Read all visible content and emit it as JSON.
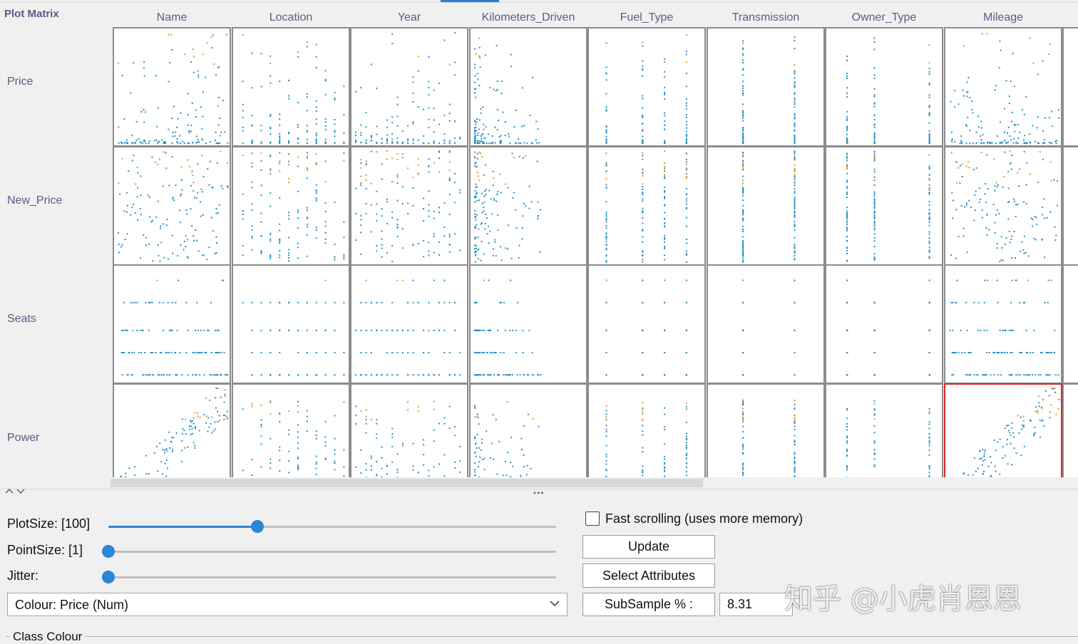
{
  "matrix": {
    "corner_label": "Plot Matrix",
    "columns": [
      "Name",
      "Location",
      "Year",
      "Kilometers_Driven",
      "Fuel_Type",
      "Transmission",
      "Owner_Type",
      "Mileage"
    ],
    "rows": [
      "Price",
      "New_Price",
      "Seats",
      "Power"
    ],
    "selected_cell": {
      "row": "Power",
      "column": "Mileage"
    }
  },
  "colors": {
    "point_primary": "#2a8fc4",
    "point_secondary": "#d9972a",
    "selection_border": "#d62a2a",
    "accent": "#2a86d6"
  },
  "controls": {
    "plot_size_label": "PlotSize: [100]",
    "plot_size_value": 100,
    "point_size_label": "PointSize: [1]",
    "point_size_value": 1,
    "jitter_label": "Jitter:",
    "jitter_value": 0,
    "colour_select": "Colour: Price  (Num)",
    "fast_scrolling_label": "Fast scrolling (uses more memory)",
    "fast_scrolling_checked": false,
    "update_button": "Update",
    "select_attributes_button": "Select Attributes",
    "subsample_button": "SubSample % :",
    "subsample_value": "8.31",
    "class_colour_label": "Class Colour"
  },
  "watermark": "知乎 @小虎肖恩恩"
}
